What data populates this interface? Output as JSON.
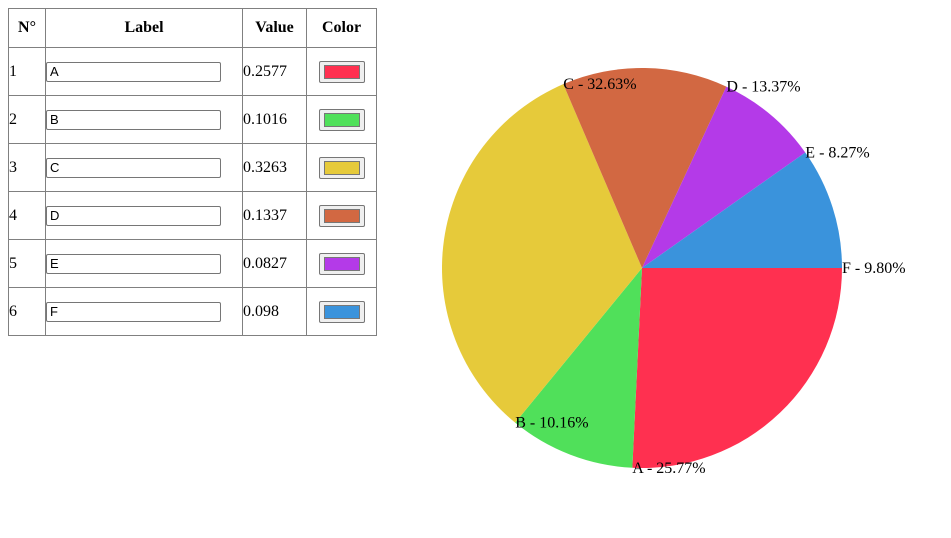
{
  "table": {
    "headers": {
      "num": "N°",
      "label": "Label",
      "value": "Value",
      "color": "Color"
    },
    "rows": [
      {
        "num": "1",
        "label": "A",
        "value": "0.2577",
        "color": "#ff3050"
      },
      {
        "num": "2",
        "label": "B",
        "value": "0.1016",
        "color": "#50e05a"
      },
      {
        "num": "3",
        "label": "C",
        "value": "0.3263",
        "color": "#e6ca3a"
      },
      {
        "num": "4",
        "label": "D",
        "value": "0.1337",
        "color": "#d26842"
      },
      {
        "num": "5",
        "label": "E",
        "value": "0.0827",
        "color": "#b43ae8"
      },
      {
        "num": "6",
        "label": "F",
        "value": "0.098",
        "color": "#3a93dc"
      }
    ]
  },
  "chart_data": {
    "type": "pie",
    "start_angle_deg": 0,
    "direction": "clockwise",
    "slices": [
      {
        "label": "A - 25.77%",
        "value": 0.2577,
        "color": "#ff3050"
      },
      {
        "label": "B - 10.16%",
        "value": 0.1016,
        "color": "#50e05a"
      },
      {
        "label": "C - 32.63%",
        "value": 0.3263,
        "color": "#e6ca3a"
      },
      {
        "label": "D - 13.37%",
        "value": 0.1337,
        "color": "#d26842"
      },
      {
        "label": "E - 8.27%",
        "value": 0.0827,
        "color": "#b43ae8"
      },
      {
        "label": "F - 9.80%",
        "value": 0.098,
        "color": "#3a93dc"
      }
    ]
  }
}
